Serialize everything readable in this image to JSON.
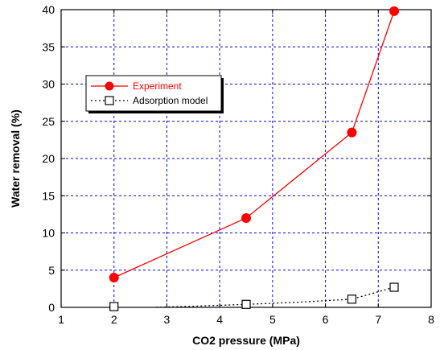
{
  "chart_data": {
    "type": "line",
    "title": "",
    "xlabel": "CO2 pressure (MPa)",
    "ylabel": "Water removal (%)",
    "xlim": [
      1,
      8
    ],
    "ylim": [
      0,
      40
    ],
    "x_ticks": [
      1,
      2,
      3,
      4,
      5,
      6,
      7,
      8
    ],
    "y_ticks": [
      0,
      5,
      10,
      15,
      20,
      25,
      30,
      35,
      40
    ],
    "grid": true,
    "legend_position": "upper-left",
    "series": [
      {
        "name": "Experiment",
        "color": "#ff0000",
        "marker": "filled-circle",
        "line_style": "solid",
        "x": [
          2,
          4.5,
          6.5,
          7.3
        ],
        "y": [
          4,
          12,
          23.5,
          39.8
        ]
      },
      {
        "name": "Adsorption model",
        "color": "#000000",
        "marker": "open-square",
        "line_style": "dotted",
        "x": [
          2,
          4.5,
          6.5,
          7.3
        ],
        "y": [
          0.1,
          0.4,
          1.1,
          2.7
        ],
        "line_x": [
          2.8,
          3.5,
          4.5,
          5.5,
          6.5,
          7.3
        ],
        "line_y": [
          0,
          0.15,
          0.4,
          0.7,
          1.1,
          2.7
        ]
      }
    ]
  }
}
